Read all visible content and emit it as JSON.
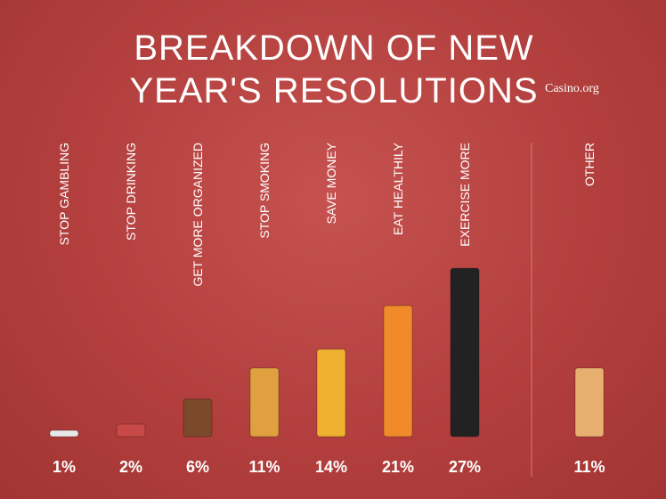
{
  "chart_data": {
    "type": "bar",
    "title": "BREAKDOWN OF NEW YEAR'S RESOLUTIONS",
    "source": "Casino.org",
    "categories": [
      "STOP GAMBLING",
      "STOP DRINKING",
      "GET MORE ORGANIZED",
      "STOP SMOKING",
      "SAVE MONEY",
      "EAT HEALTHILY",
      "EXERCISE MORE",
      "OTHER"
    ],
    "values": [
      1,
      2,
      6,
      11,
      14,
      21,
      27,
      11
    ],
    "value_labels": [
      "1%",
      "2%",
      "6%",
      "11%",
      "14%",
      "21%",
      "27%",
      "11%"
    ],
    "colors": [
      "#e8e8e8",
      "#c84a48",
      "#7a4a2a",
      "#e0a040",
      "#f0b030",
      "#f08a2a",
      "#222222",
      "#e8b070"
    ]
  }
}
